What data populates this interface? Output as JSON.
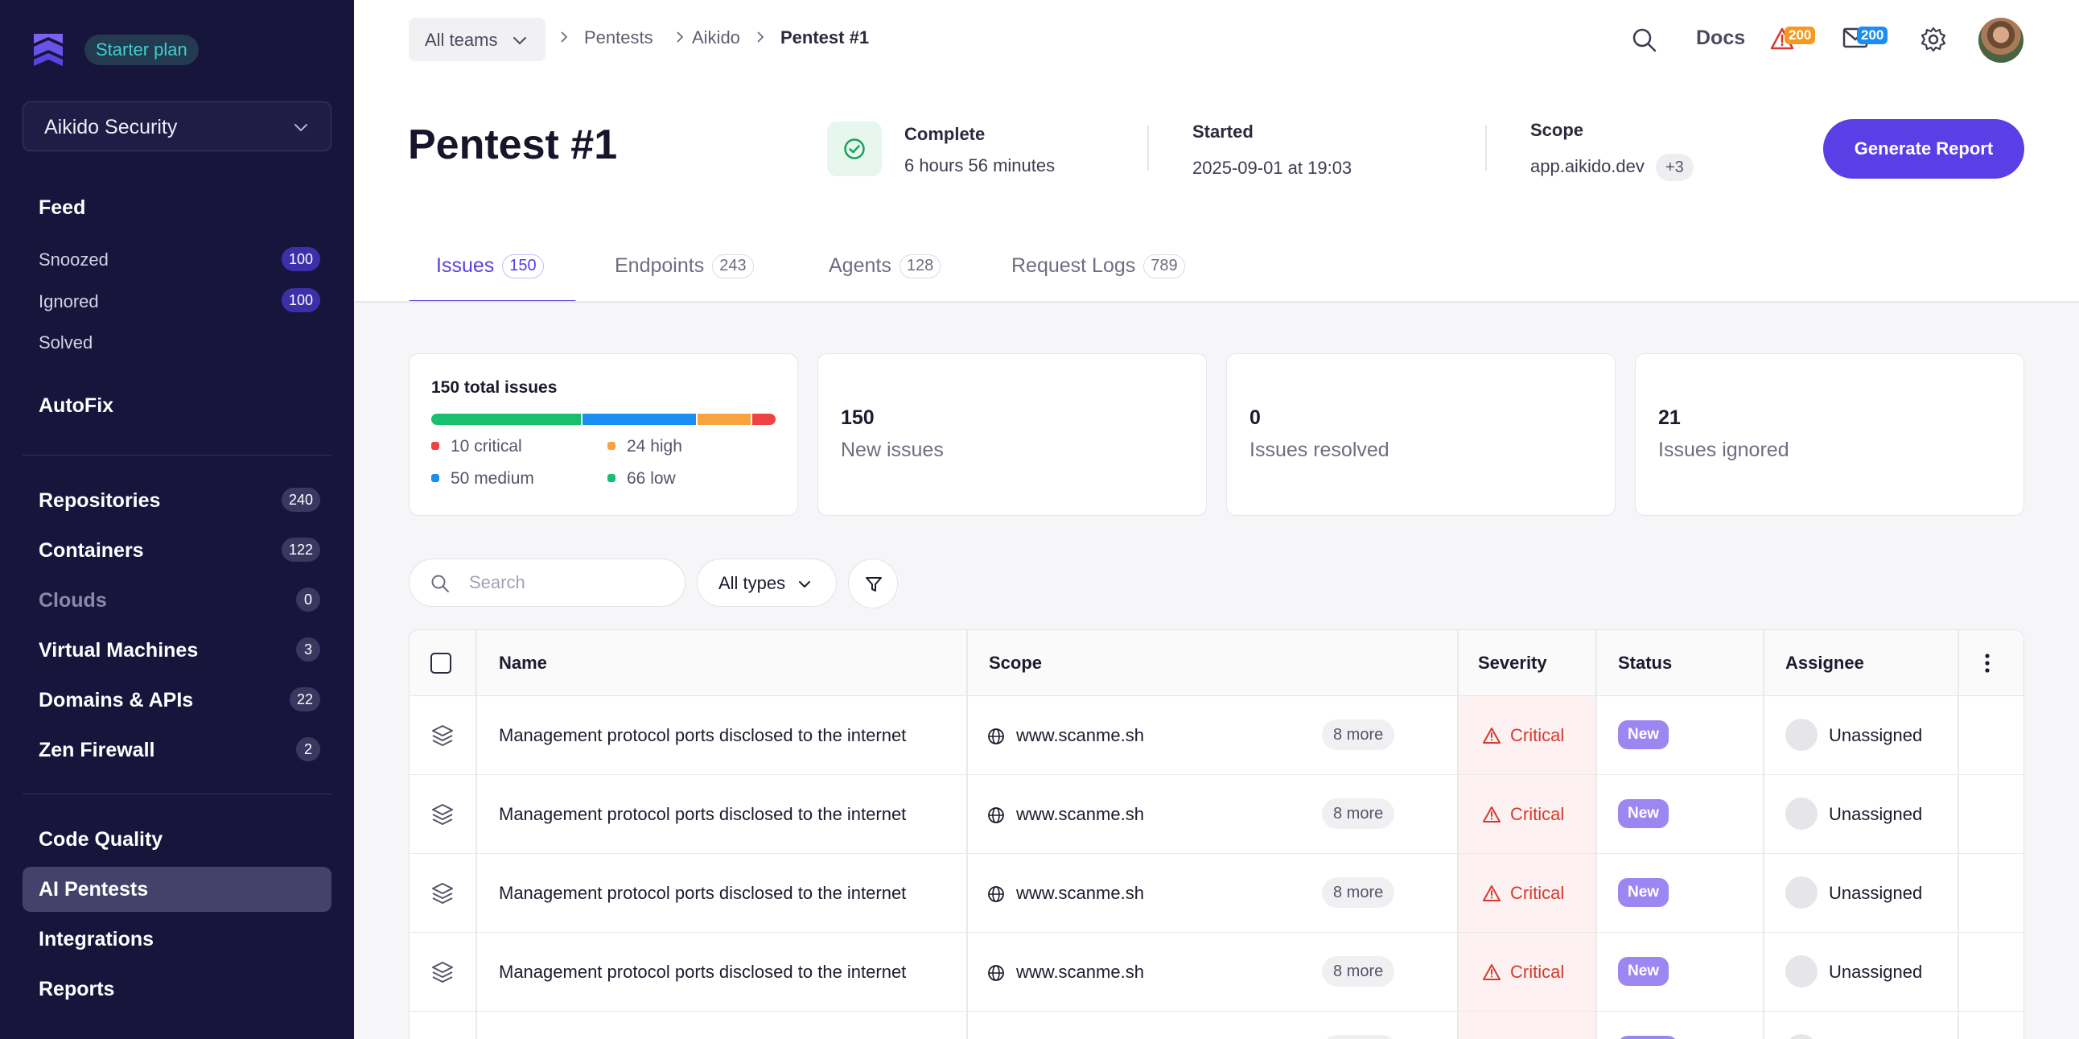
{
  "sidebar": {
    "plan": "Starter plan",
    "org": "Aikido Security",
    "feed": "Feed",
    "feed_items": [
      {
        "label": "Snoozed",
        "count": "100"
      },
      {
        "label": "Ignored",
        "count": "100"
      },
      {
        "label": "Solved"
      }
    ],
    "autofix": "AutoFix",
    "resources": [
      {
        "label": "Repositories",
        "count": "240"
      },
      {
        "label": "Containers",
        "count": "122"
      },
      {
        "label": "Clouds",
        "count": "0"
      },
      {
        "label": "Virtual Machines",
        "count": "3"
      },
      {
        "label": "Domains & APIs",
        "count": "22"
      },
      {
        "label": "Zen Firewall",
        "count": "2"
      }
    ],
    "tools": [
      {
        "label": "Code Quality"
      },
      {
        "label": "AI Pentests"
      },
      {
        "label": "Integrations"
      },
      {
        "label": "Reports"
      }
    ]
  },
  "topbar": {
    "team_select": "All teams",
    "breadcrumbs": [
      "Pentests",
      "Aikido",
      "Pentest #1"
    ],
    "docs": "Docs",
    "alerts_count": "200",
    "messages_count": "200"
  },
  "header": {
    "title": "Pentest #1",
    "status_label": "Complete",
    "duration": "6 hours 56 minutes",
    "started_label": "Started",
    "started_value": "2025-09-01 at 19:03",
    "scope_label": "Scope",
    "scope_value": "app.aikido.dev",
    "scope_more": "+3",
    "generate_button": "Generate Report"
  },
  "tabs": [
    {
      "label": "Issues",
      "count": "150"
    },
    {
      "label": "Endpoints",
      "count": "243"
    },
    {
      "label": "Agents",
      "count": "128"
    },
    {
      "label": "Request Logs",
      "count": "789"
    }
  ],
  "summary": {
    "total_title": "150 total issues",
    "severity": [
      {
        "label": "10 critical",
        "value": 10,
        "color": "#ef4343"
      },
      {
        "label": "24 high",
        "value": 24,
        "color": "#f7a440"
      },
      {
        "label": "50 medium",
        "value": 50,
        "color": "#1a8ef2"
      },
      {
        "label": "66 low",
        "value": 66,
        "color": "#17bf6f"
      }
    ],
    "cards": [
      {
        "value": "150",
        "label": "New issues"
      },
      {
        "value": "0",
        "label": "Issues resolved"
      },
      {
        "value": "21",
        "label": "Issues ignored"
      }
    ]
  },
  "filters": {
    "search_placeholder": "Search",
    "types": "All types"
  },
  "table": {
    "headers": [
      "Name",
      "Scope",
      "Severity",
      "Status",
      "Assignee"
    ],
    "rows": [
      {
        "name": "Management protocol ports disclosed to the internet",
        "scope": "www.scanme.sh",
        "more": "8 more",
        "severity": "Critical",
        "status": "New",
        "assignee": "Unassigned"
      },
      {
        "name": "Management protocol ports disclosed to the internet",
        "scope": "www.scanme.sh",
        "more": "8 more",
        "severity": "Critical",
        "status": "New",
        "assignee": "Unassigned"
      },
      {
        "name": "Management protocol ports disclosed to the internet",
        "scope": "www.scanme.sh",
        "more": "8 more",
        "severity": "Critical",
        "status": "New",
        "assignee": "Unassigned"
      },
      {
        "name": "Management protocol ports disclosed to the internet",
        "scope": "www.scanme.sh",
        "more": "8 more",
        "severity": "Critical",
        "status": "New",
        "assignee": "Unassigned"
      },
      {
        "name": "",
        "scope": "",
        "more": "",
        "severity": "",
        "status": "",
        "assignee": ""
      }
    ]
  }
}
